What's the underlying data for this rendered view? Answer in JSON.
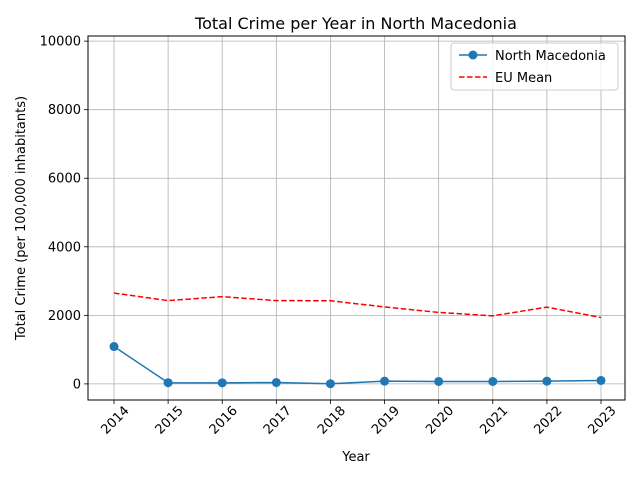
{
  "chart_data": {
    "type": "line",
    "title": "Total Crime per Year in North Macedonia",
    "xlabel": "Year",
    "ylabel": "Total Crime (per 100,000 inhabitants)",
    "x": [
      "2014",
      "2015",
      "2016",
      "2017",
      "2018",
      "2019",
      "2020",
      "2021",
      "2022",
      "2023"
    ],
    "ylim": [
      -470,
      10150
    ],
    "yticks": [
      0,
      2000,
      4000,
      6000,
      8000,
      10000
    ],
    "grid": true,
    "legend_position": "top-right",
    "series": [
      {
        "name": "North Macedonia",
        "color": "#1f77b4",
        "style": "solid",
        "marker": "circle",
        "values": [
          1090,
          35,
          30,
          40,
          5,
          80,
          70,
          70,
          80,
          100
        ]
      },
      {
        "name": "EU Mean",
        "color": "#ff0000",
        "style": "dashed",
        "marker": "none",
        "values": [
          2650,
          2430,
          2545,
          2430,
          2425,
          2245,
          2085,
          1985,
          2240,
          1935
        ]
      }
    ]
  }
}
